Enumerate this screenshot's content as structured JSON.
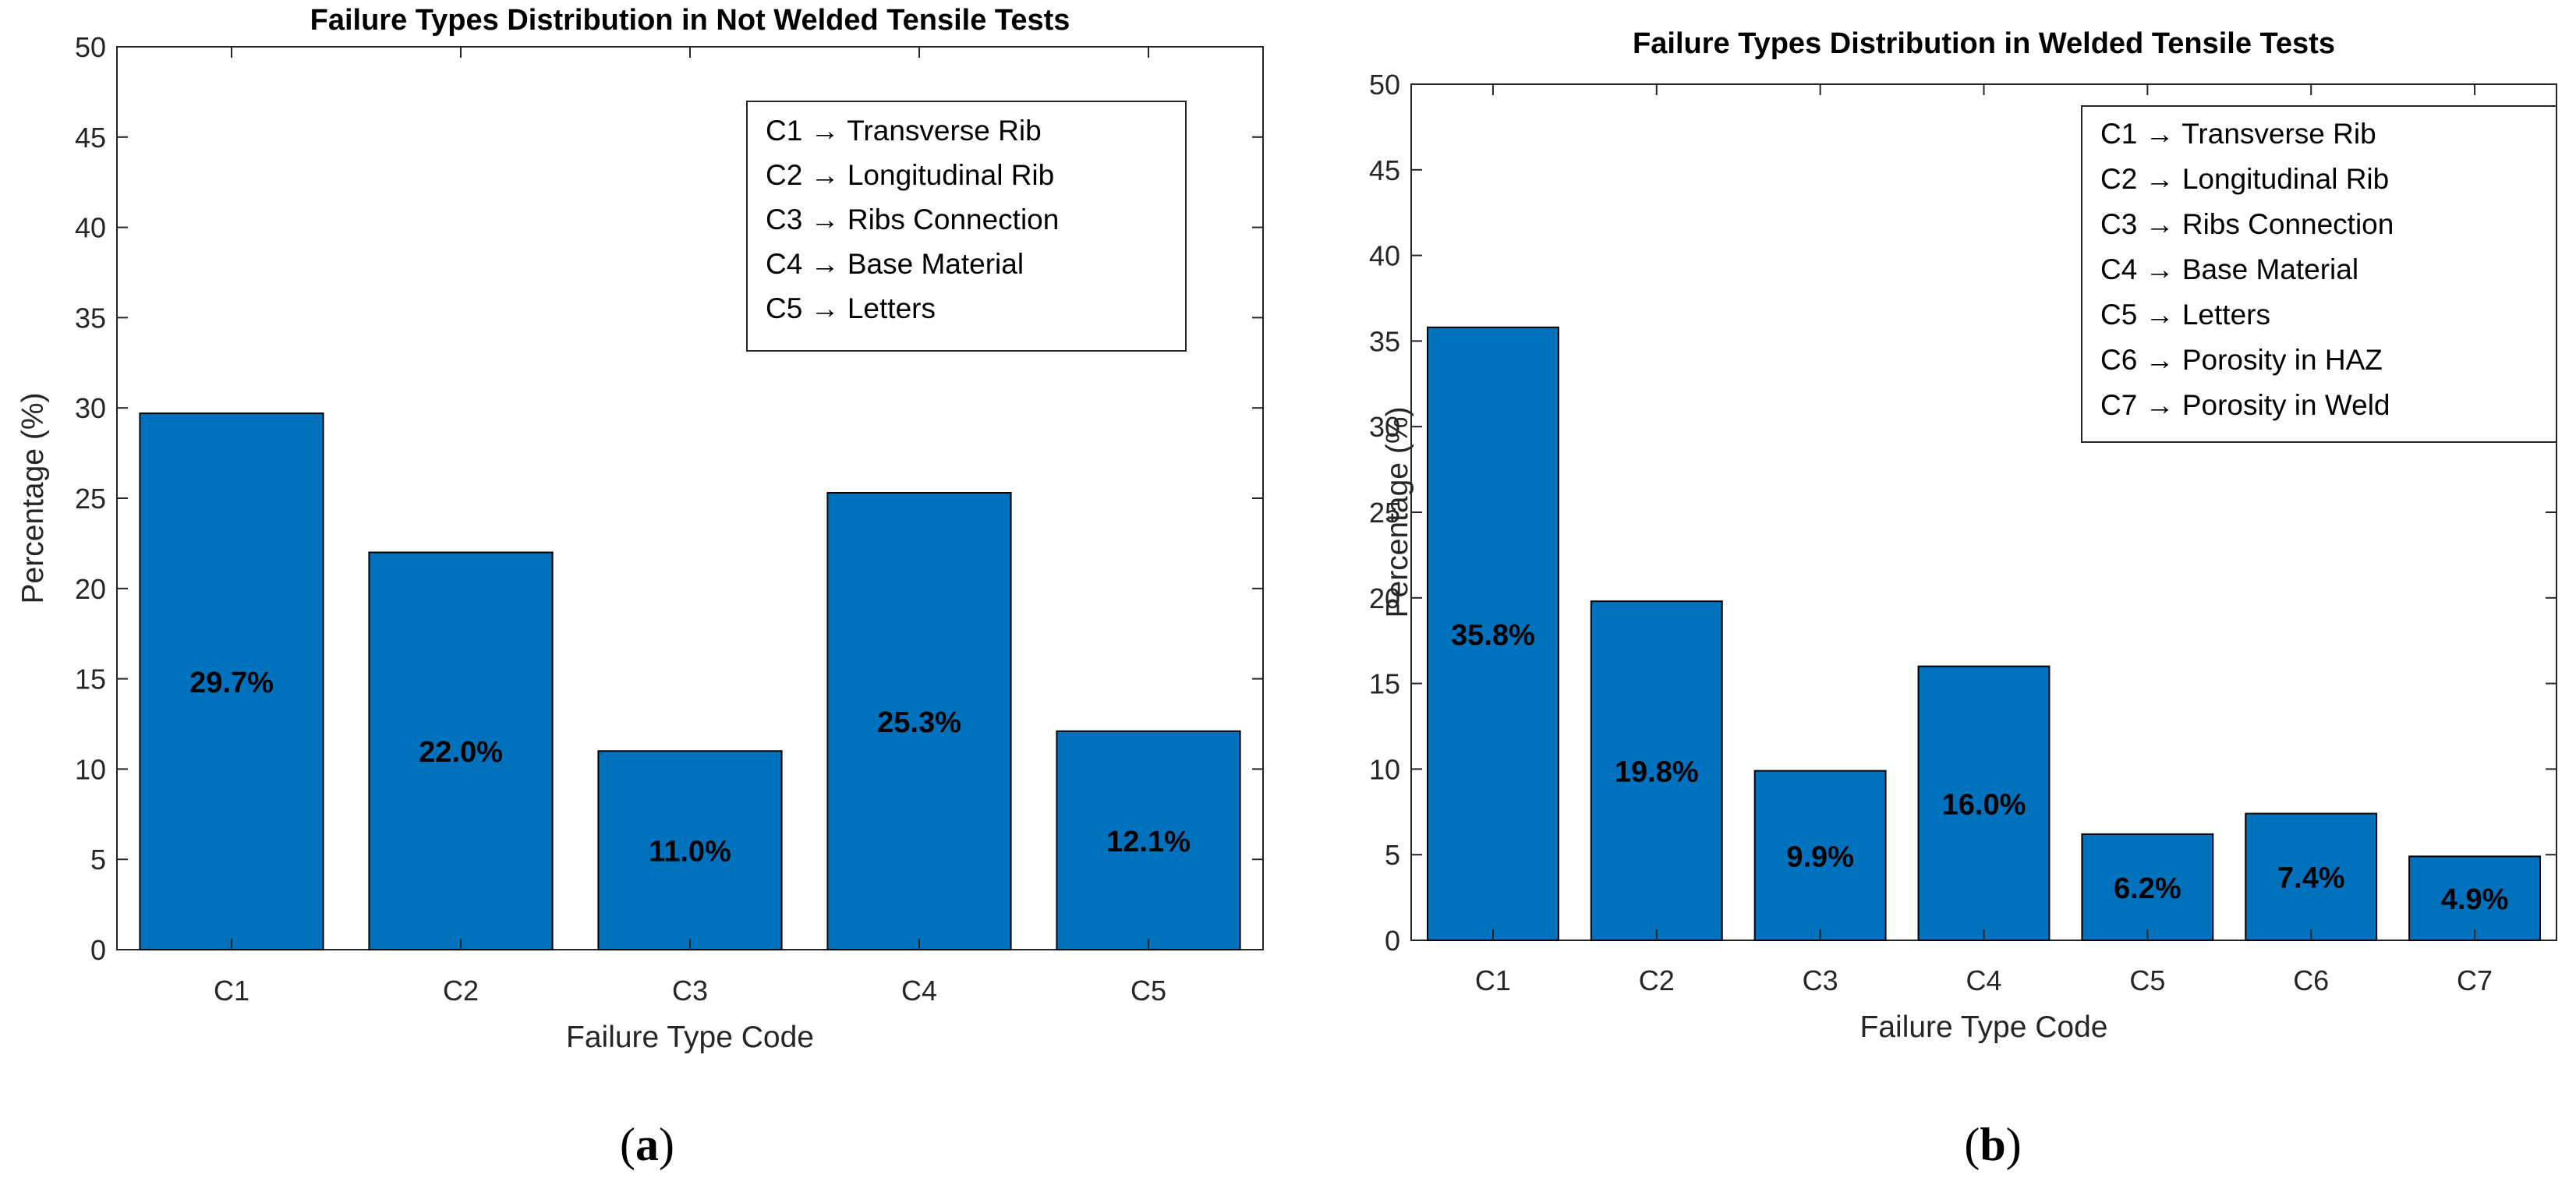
{
  "chart_data": [
    {
      "type": "bar",
      "panel_label": "(a)",
      "title": "Failure Types Distribution in Not Welded Tensile Tests",
      "xlabel": "Failure Type Code",
      "ylabel": "Percentage (%)",
      "categories": [
        "C1",
        "C2",
        "C3",
        "C4",
        "C5"
      ],
      "values": [
        29.7,
        22.0,
        11.0,
        25.3,
        12.1
      ],
      "data_labels": [
        "29.7%",
        "22.0%",
        "11.0%",
        "25.3%",
        "12.1%"
      ],
      "ylim": [
        0,
        50
      ],
      "yticks": [
        0,
        5,
        10,
        15,
        20,
        25,
        30,
        35,
        40,
        45,
        50
      ],
      "ytick_labels": [
        "0",
        "5",
        "10",
        "15",
        "20",
        "25",
        "30",
        "35",
        "40",
        "45",
        "50"
      ],
      "grid": false,
      "legend_placement": "top-right",
      "legend": [
        "C1 → Transverse Rib",
        "C2 → Longitudinal Rib",
        "C3 → Ribs Connection",
        "C4 → Base Material",
        "C5 → Letters"
      ],
      "bar_color": "#0072BD"
    },
    {
      "type": "bar",
      "panel_label": "(b)",
      "title": "Failure Types Distribution in Welded Tensile Tests",
      "xlabel": "Failure Type Code",
      "ylabel": "Percentage (%)",
      "categories": [
        "C1",
        "C2",
        "C3",
        "C4",
        "C5",
        "C6",
        "C7"
      ],
      "values": [
        35.8,
        19.8,
        9.9,
        16.0,
        6.2,
        7.4,
        4.9
      ],
      "data_labels": [
        "35.8%",
        "19.8%",
        "9.9%",
        "16.0%",
        "6.2%",
        "7.4%",
        "4.9%"
      ],
      "ylim": [
        0,
        50
      ],
      "yticks": [
        0,
        5,
        10,
        15,
        20,
        25,
        30,
        35,
        40,
        45,
        50
      ],
      "ytick_labels": [
        "0",
        "5",
        "10",
        "15",
        "20",
        "25",
        "30",
        "35",
        "40",
        "45",
        "50"
      ],
      "grid": false,
      "legend_placement": "top-right",
      "legend": [
        "C1 → Transverse Rib",
        "C2 → Longitudinal Rib",
        "C3 → Ribs Connection",
        "C4 → Base Material",
        "C5 → Letters",
        "C6 → Porosity in HAZ",
        "C7 → Porosity in Weld"
      ],
      "bar_color": "#0072BD"
    }
  ]
}
